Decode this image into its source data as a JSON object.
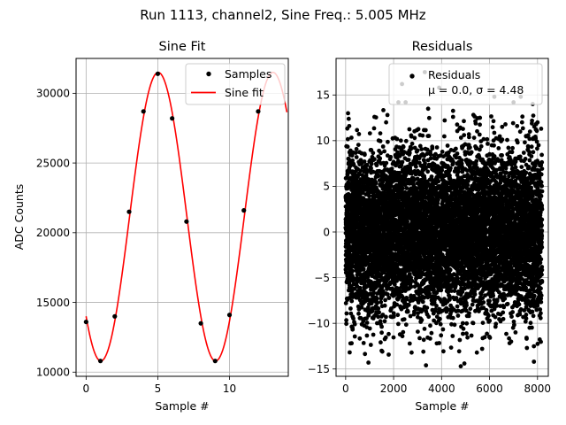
{
  "figure": {
    "suptitle": "Run 1113, channel2, Sine Freq.: 5.005 MHz"
  },
  "chart_data": [
    {
      "type": "line",
      "title": "Sine Fit",
      "xlabel": "Sample #",
      "ylabel": "ADC Counts",
      "xlim": [
        -0.7,
        14.1
      ],
      "ylim": [
        9700,
        32500
      ],
      "xticks": [
        0,
        5,
        10
      ],
      "yticks": [
        10000,
        15000,
        20000,
        25000,
        30000
      ],
      "grid": true,
      "legend": {
        "placement": "upper right",
        "entries": [
          "Samples",
          "Sine fit"
        ]
      },
      "series": [
        {
          "name": "Samples",
          "style": "points",
          "color": "#000000",
          "x": [
            0,
            1,
            2,
            3,
            4,
            5,
            6,
            7,
            8,
            9,
            10,
            11,
            12
          ],
          "y": [
            13600,
            10800,
            14000,
            21500,
            28700,
            31400,
            28200,
            20800,
            13500,
            10800,
            14100,
            21600,
            28700
          ]
        },
        {
          "name": "Sine fit",
          "style": "line",
          "color": "#ff0000",
          "model": {
            "amplitude": 10350,
            "offset": 21150,
            "period": 8,
            "peak_x": 5.03,
            "x_range": [
              0,
              14
            ]
          }
        }
      ]
    },
    {
      "type": "scatter",
      "title": "Residuals",
      "xlabel": "Sample #",
      "ylabel": "",
      "xlim": [
        -400,
        8450
      ],
      "ylim": [
        -15.8,
        19.0
      ],
      "xticks": [
        0,
        2000,
        4000,
        6000,
        8000
      ],
      "yticks": [
        -15,
        -10,
        -5,
        0,
        5,
        10,
        15
      ],
      "grid": true,
      "legend": {
        "placement": "upper right",
        "entries": [
          "Residuals"
        ],
        "annotation": "μ = 0.0, σ = 4.48"
      },
      "series": [
        {
          "name": "Residuals",
          "color": "#000000",
          "count": 8192,
          "mean": 0.0,
          "sigma": 4.48,
          "outliers": [
            [
              2350,
              16.2
            ],
            [
              2200,
              14.2
            ],
            [
              2500,
              14.2
            ],
            [
              3300,
              17.5
            ],
            [
              3900,
              15.8
            ],
            [
              6200,
              14.8
            ],
            [
              7000,
              14.2
            ],
            [
              7300,
              14.8
            ],
            [
              100,
              13.0
            ],
            [
              7800,
              14.0
            ],
            [
              950,
              -14.3
            ],
            [
              3350,
              -14.6
            ],
            [
              4800,
              -14.7
            ],
            [
              4950,
              -14.4
            ],
            [
              7850,
              -14.2
            ],
            [
              200,
              -12.2
            ],
            [
              1500,
              -13.0
            ],
            [
              2750,
              -13.2
            ],
            [
              3800,
              -12.2
            ],
            [
              6900,
              -12.0
            ],
            [
              150,
              11.6
            ],
            [
              1200,
              12.6
            ],
            [
              5600,
              12.5
            ],
            [
              7150,
              11.6
            ],
            [
              8000,
              12.0
            ]
          ]
        }
      ]
    }
  ]
}
